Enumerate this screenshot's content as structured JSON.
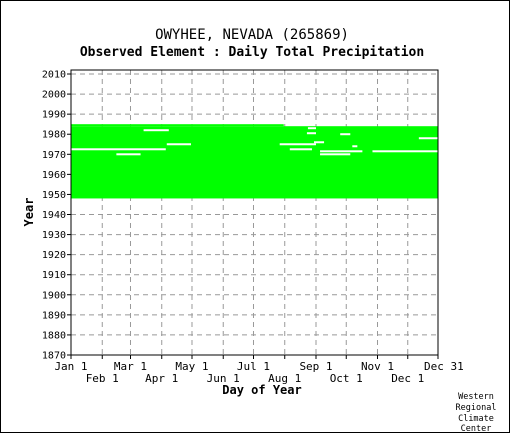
{
  "chart_data": {
    "type": "heatmap",
    "title": "OWYHEE, NEVADA   (265869)",
    "subtitle": "Observed Element : Daily Total Precipitation",
    "xlabel": "Day of Year",
    "ylabel": "Year",
    "ylim": [
      1870,
      2012
    ],
    "yticks": [
      2010,
      2000,
      1990,
      1980,
      1970,
      1960,
      1950,
      1940,
      1930,
      1920,
      1910,
      1900,
      1890,
      1880,
      1870
    ],
    "xticks_upper": [
      {
        "label": "Jan 1",
        "day": 1
      },
      {
        "label": "Mar 1",
        "day": 60
      },
      {
        "label": "May 1",
        "day": 121
      },
      {
        "label": "Jul 1",
        "day": 182
      },
      {
        "label": "Sep 1",
        "day": 244
      },
      {
        "label": "Nov 1",
        "day": 305
      },
      {
        "label": "Dec 31",
        "day": 365
      }
    ],
    "xticks_lower": [
      {
        "label": "Feb 1",
        "day": 32
      },
      {
        "label": "Apr 1",
        "day": 91
      },
      {
        "label": "Jun 1",
        "day": 152
      },
      {
        "label": "Aug 1",
        "day": 213
      },
      {
        "label": "Oct 1",
        "day": 274
      },
      {
        "label": "Dec 1",
        "day": 335
      }
    ],
    "grid": true,
    "data_color": "#00ff00",
    "record": {
      "start_year": 1948,
      "end_year": 1985,
      "last_full_year": 1984
    },
    "gaps": [
      {
        "year": 1972.5,
        "day_start": 1,
        "day_end": 95
      },
      {
        "year": 1972.5,
        "day_start": 218,
        "day_end": 240
      },
      {
        "year": 1971.5,
        "day_start": 248,
        "day_end": 290
      },
      {
        "year": 1971.5,
        "day_start": 300,
        "day_end": 365
      },
      {
        "year": 1970,
        "day_start": 46,
        "day_end": 70
      },
      {
        "year": 1970,
        "day_start": 248,
        "day_end": 278
      },
      {
        "year": 1975,
        "day_start": 96,
        "day_end": 120
      },
      {
        "year": 1975,
        "day_start": 208,
        "day_end": 244
      },
      {
        "year": 1976,
        "day_start": 242,
        "day_end": 252
      },
      {
        "year": 1982,
        "day_start": 73,
        "day_end": 98
      },
      {
        "year": 1983,
        "day_start": 236,
        "day_end": 244
      },
      {
        "year": 1980.5,
        "day_start": 235,
        "day_end": 244
      },
      {
        "year": 1980,
        "day_start": 268,
        "day_end": 278
      },
      {
        "year": 1978,
        "day_start": 346,
        "day_end": 365
      },
      {
        "year": 1974,
        "day_start": 280,
        "day_end": 285
      }
    ]
  },
  "credit": [
    "Western",
    "Regional",
    "Climate",
    "Center"
  ]
}
